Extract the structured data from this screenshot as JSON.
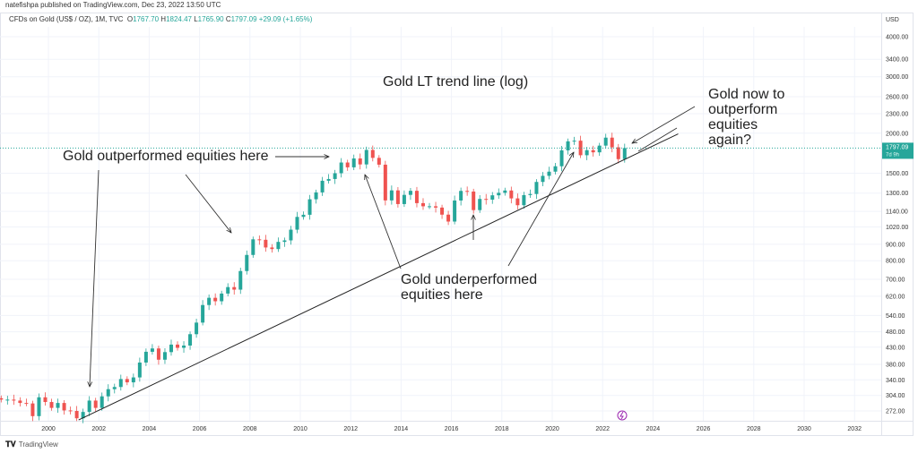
{
  "header": {
    "publisher": "natefishpa published on TradingView.com, Dec 23, 2022 13:50 UTC",
    "symbol": "CFDs on Gold (US$ / OZ), 1M, TVC",
    "o_label": "O",
    "open": "1767.70",
    "h_label": "H",
    "high": "1824.47",
    "l_label": "L",
    "low": "1765.90",
    "c_label": "C",
    "close": "1797.09",
    "change": "+29.09 (+1.65%)"
  },
  "price_label": {
    "price": "1797.09",
    "countdown": "7d 9h"
  },
  "footer": {
    "logo": "TradingView"
  },
  "colors": {
    "up": "#26a69a",
    "down": "#ef5350",
    "price_line": "#26a69a"
  },
  "chart_data": {
    "type": "candlestick",
    "title": "Gold LT trend line (log)",
    "y_scale": "log",
    "y_unit": "USD",
    "y_ticks": [
      272,
      304,
      340,
      380,
      430,
      480,
      540,
      620,
      700,
      800,
      900,
      1020,
      1140,
      1300,
      1500,
      2000,
      2300,
      2600,
      3000,
      3400,
      4000
    ],
    "x_ticks": [
      "2000",
      "2002",
      "2004",
      "2006",
      "2008",
      "2010",
      "2012",
      "2014",
      "2016",
      "2018",
      "2020",
      "2022",
      "2024",
      "2026",
      "2028",
      "2030",
      "2032"
    ],
    "x_range": [
      1998,
      2034
    ],
    "period": "quarterly approximation of monthly candles",
    "start": 1998.0,
    "closes": [
      295,
      295,
      293,
      288,
      287,
      262,
      300,
      290,
      278,
      288,
      273,
      272,
      258,
      270,
      293,
      278,
      302,
      318,
      323,
      342,
      334,
      346,
      385,
      416,
      426,
      393,
      415,
      438,
      428,
      435,
      472,
      513,
      582,
      613,
      598,
      632,
      662,
      650,
      743,
      834,
      933,
      930,
      880,
      870,
      916,
      926,
      1000,
      1096,
      1113,
      1244,
      1307,
      1421,
      1439,
      1500,
      1620,
      1565,
      1668,
      1598,
      1773,
      1675,
      1595,
      1234,
      1326,
      1202,
      1284,
      1322,
      1210,
      1183,
      1183,
      1172,
      1114,
      1060,
      1233,
      1321,
      1315,
      1151,
      1247,
      1241,
      1280,
      1303,
      1325,
      1252,
      1192,
      1282,
      1292,
      1409,
      1472,
      1517,
      1577,
      1768,
      1886,
      1895,
      1707,
      1770,
      1743,
      1829,
      1937,
      1807,
      1660,
      1797
    ],
    "last_price": 1797.09,
    "trendline": {
      "from": [
        2001.2,
        255
      ],
      "to": [
        2025.0,
        1990
      ]
    },
    "annotations": {
      "outperformed": "Gold outperformed equities here",
      "underperformed_1": "Gold underperformed",
      "underperformed_2": "equities here",
      "now_1": "Gold now to",
      "now_2": "outperform",
      "now_3": "equities",
      "now_4": "again?"
    }
  }
}
